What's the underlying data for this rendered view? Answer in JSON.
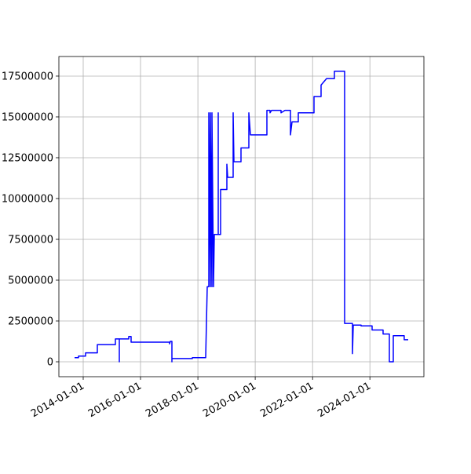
{
  "chart_data": {
    "type": "line",
    "color": "#0000ff",
    "grid": true,
    "x": [
      "2013-09-13",
      "2013-11-02",
      "2013-11-02",
      "2014-01-31",
      "2014-01-31",
      "2014-06-30",
      "2014-06-30",
      "2015-02-15",
      "2015-02-15",
      "2015-04-06",
      "2015-04-06",
      "2015-04-06",
      "2015-08-04",
      "2015-08-04",
      "2015-09-03",
      "2015-09-03",
      "2017-01-05",
      "2017-01-05",
      "2017-01-15",
      "2017-02-04",
      "2017-02-04",
      "2017-02-04",
      "2017-10-22",
      "2017-10-22",
      "2018-04-10",
      "2018-04-30",
      "2018-05-20",
      "2018-05-20",
      "2018-06-09",
      "2018-06-09",
      "2018-06-29",
      "2018-06-29",
      "2018-07-19",
      "2018-07-29",
      "2018-09-17",
      "2018-09-17",
      "2018-09-17",
      "2018-10-17",
      "2018-10-17",
      "2019-01-05",
      "2019-01-05",
      "2019-01-15",
      "2019-03-26",
      "2019-03-26",
      "2019-04-05",
      "2019-07-04",
      "2019-07-04",
      "2019-10-12",
      "2019-10-12",
      "2019-11-01",
      "2020-05-29",
      "2020-05-29",
      "2020-07-08",
      "2020-07-08",
      "2020-07-28",
      "2020-11-25",
      "2020-11-25",
      "2021-01-14",
      "2021-03-25",
      "2021-03-25",
      "2021-04-14",
      "2021-07-03",
      "2021-07-03",
      "2022-01-19",
      "2022-01-19",
      "2022-04-19",
      "2022-04-19",
      "2022-06-28",
      "2022-10-06",
      "2022-10-06",
      "2023-02-13",
      "2023-02-13",
      "2023-05-24",
      "2023-05-24",
      "2023-06-03",
      "2023-09-11",
      "2023-09-11",
      "2024-01-29",
      "2024-01-29",
      "2024-06-17",
      "2024-06-17",
      "2024-09-05",
      "2024-09-05",
      "2024-10-25",
      "2024-10-25",
      "2025-03-13",
      "2025-03-13",
      "2025-05-03"
    ],
    "values": [
      250000,
      250000,
      350000,
      350000,
      550000,
      550000,
      1050000,
      1050000,
      1400000,
      1400000,
      0,
      1400000,
      1400000,
      1550000,
      1550000,
      1200000,
      1200000,
      1100000,
      1250000,
      1250000,
      0,
      200000,
      200000,
      250000,
      250000,
      4600000,
      4600000,
      15250000,
      4600000,
      15250000,
      4600000,
      15250000,
      4600000,
      7800000,
      7800000,
      15250000,
      7800000,
      7800000,
      10550000,
      10550000,
      12100000,
      11300000,
      11300000,
      15250000,
      12250000,
      12250000,
      13100000,
      13100000,
      15250000,
      13900000,
      13900000,
      15400000,
      15400000,
      15250000,
      15400000,
      15400000,
      15250000,
      15400000,
      15400000,
      13900000,
      14700000,
      14700000,
      15250000,
      15250000,
      16250000,
      16250000,
      16950000,
      17350000,
      17350000,
      17800000,
      17800000,
      2350000,
      2350000,
      500000,
      2250000,
      2250000,
      2200000,
      2200000,
      1950000,
      1950000,
      1700000,
      1700000,
      0,
      0,
      1600000,
      1600000,
      1350000,
      1350000
    ],
    "xlim": [
      "2013-02-25",
      "2025-11-19"
    ],
    "xticks": [
      "2014-01-01",
      "2016-01-01",
      "2018-01-01",
      "2020-01-01",
      "2022-01-01",
      "2024-01-01"
    ],
    "ylim": [
      -913000,
      18700000
    ],
    "yticks": [
      0,
      2500000,
      5000000,
      7500000,
      10000000,
      12500000,
      15000000,
      17500000
    ]
  }
}
